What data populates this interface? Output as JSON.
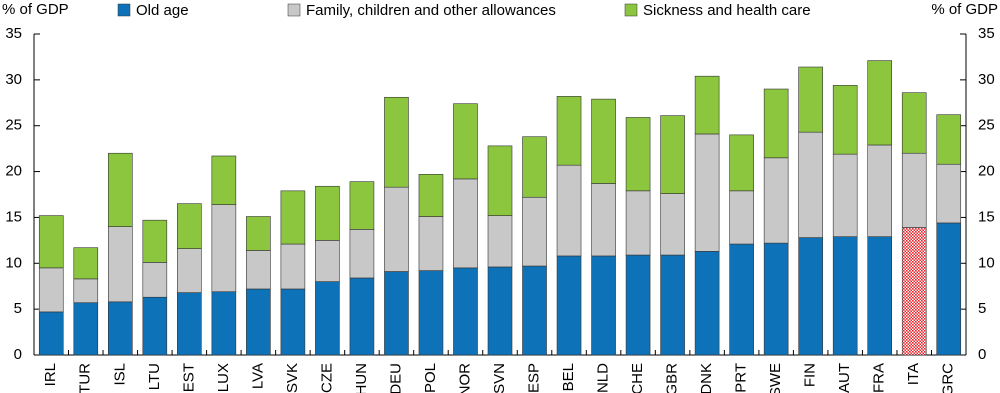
{
  "chart_data": {
    "type": "stacked_bar",
    "y_label": "% of GDP",
    "y2_label": "% of GDP",
    "categories": [
      "IRL",
      "TUR",
      "ISL",
      "LTU",
      "EST",
      "LUX",
      "LVA",
      "SVK",
      "CZE",
      "HUN",
      "DEU",
      "POL",
      "NOR",
      "SVN",
      "ESP",
      "BEL",
      "NLD",
      "CHE",
      "GBR",
      "DNK",
      "PRT",
      "SWE",
      "FIN",
      "AUT",
      "FRA",
      "ITA",
      "GRC"
    ],
    "series": [
      {
        "name": "Old age",
        "color": "#0e72b8",
        "values": [
          4.7,
          5.7,
          5.8,
          6.3,
          6.8,
          6.9,
          7.2,
          7.2,
          8.0,
          8.4,
          9.1,
          9.2,
          9.5,
          9.6,
          9.7,
          10.8,
          10.8,
          10.9,
          10.9,
          11.3,
          12.1,
          12.2,
          12.8,
          12.9,
          12.9,
          13.9,
          14.4
        ]
      },
      {
        "name": "Family, children and other allowances",
        "color": "#c8c8c8",
        "values": [
          4.8,
          2.6,
          8.2,
          3.8,
          4.8,
          9.5,
          4.2,
          4.9,
          4.5,
          5.3,
          9.2,
          5.9,
          9.7,
          5.6,
          7.5,
          9.9,
          7.9,
          7.0,
          6.7,
          12.8,
          5.8,
          9.3,
          11.5,
          9.0,
          10.0,
          8.1,
          6.4
        ]
      },
      {
        "name": "Sickness and health care",
        "color": "#8cc63f",
        "values": [
          5.7,
          3.4,
          8.0,
          4.6,
          4.9,
          5.3,
          3.7,
          5.8,
          5.9,
          5.2,
          9.8,
          4.6,
          8.2,
          7.6,
          6.6,
          7.5,
          9.2,
          8.0,
          8.5,
          6.3,
          6.1,
          7.5,
          7.1,
          7.5,
          9.2,
          6.6,
          5.4
        ]
      }
    ],
    "highlight_categories": [
      "ITA"
    ],
    "highlight_color": "#e8262c",
    "ylim": [
      0,
      35
    ],
    "yticks": [
      0,
      5,
      10,
      15,
      20,
      25,
      30,
      35
    ],
    "y2lim": [
      0,
      35
    ],
    "y2ticks": [
      0,
      5,
      10,
      15,
      20,
      25,
      30,
      35
    ],
    "grid": false
  }
}
